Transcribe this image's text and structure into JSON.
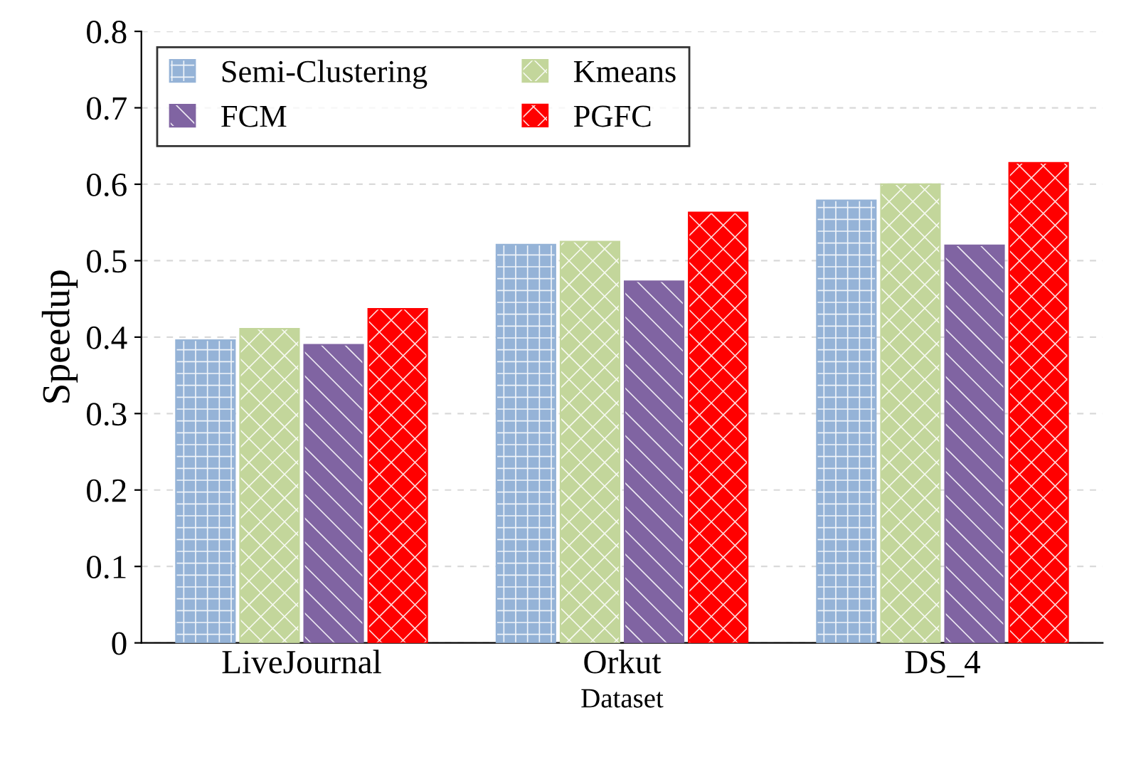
{
  "chart_data": {
    "type": "bar",
    "xlabel": "Dataset",
    "ylabel": "Speedup",
    "categories": [
      "LiveJournal",
      "Orkut",
      "DS_4"
    ],
    "series": [
      {
        "name": "Semi-Clustering",
        "color": "#95b3d7",
        "values": [
          0.396,
          0.521,
          0.579
        ]
      },
      {
        "name": "Kmeans",
        "color": "#c3d69b",
        "values": [
          0.411,
          0.525,
          0.6
        ]
      },
      {
        "name": "FCM",
        "color": "#8064a2",
        "values": [
          0.39,
          0.473,
          0.52
        ]
      },
      {
        "name": "PGFC",
        "color": "#ff0000",
        "values": [
          0.437,
          0.563,
          0.628
        ]
      }
    ],
    "ylim": [
      0,
      0.8
    ],
    "yticks": [
      0,
      0.1,
      0.2,
      0.3,
      0.4,
      0.5,
      0.6,
      0.7,
      0.8
    ],
    "grid": "y",
    "legend": "top left"
  }
}
